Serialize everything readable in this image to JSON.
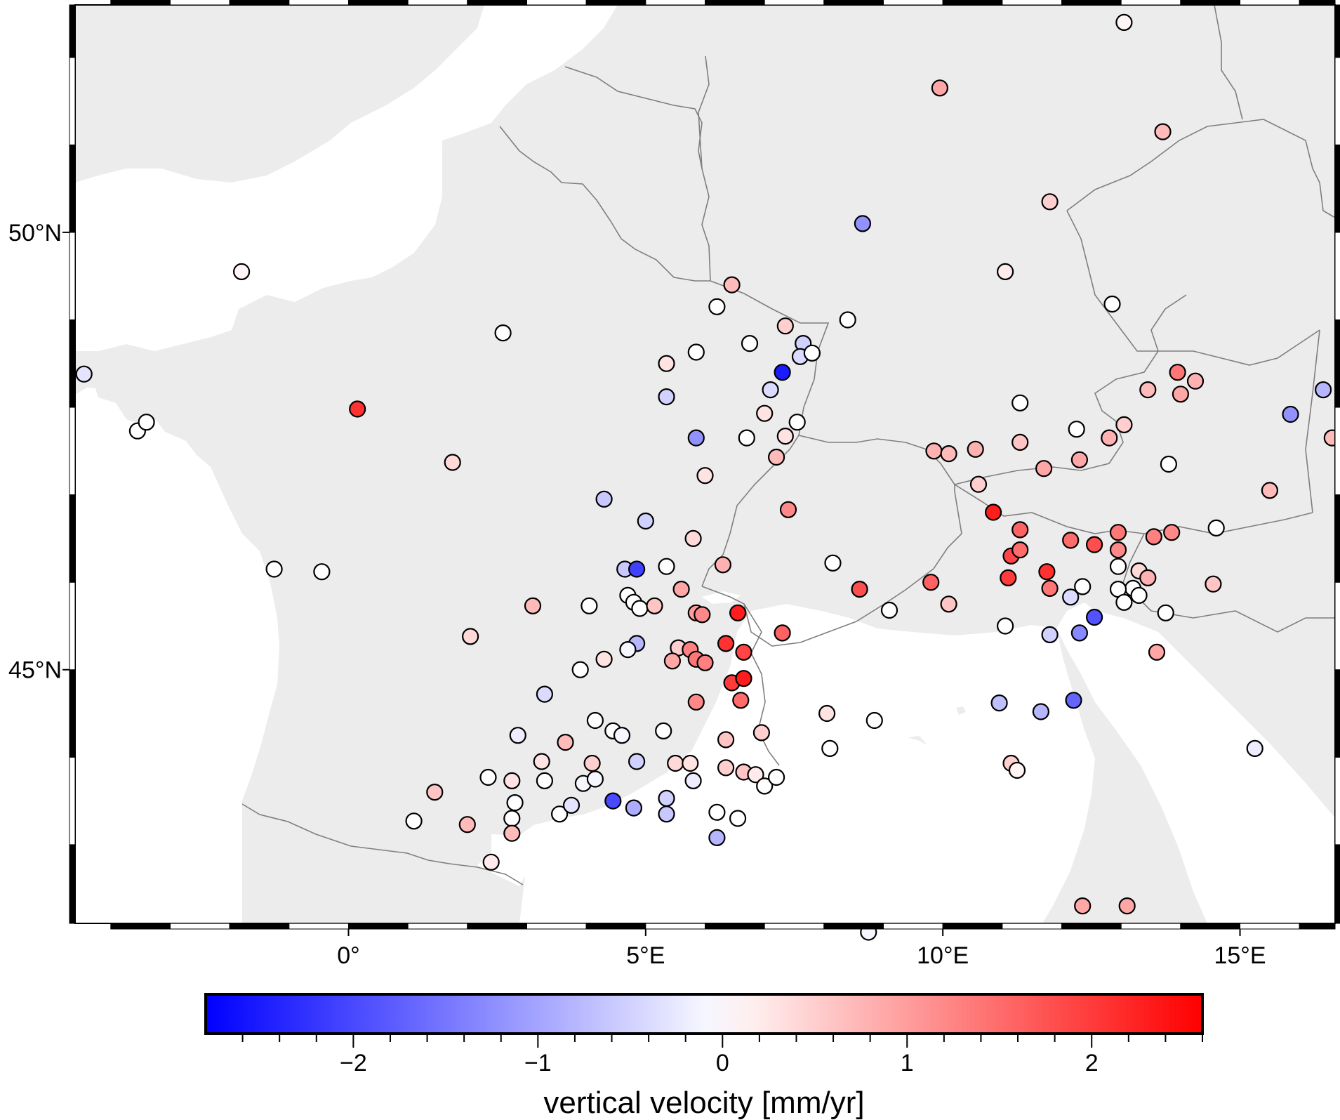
{
  "map": {
    "lon_range": [
      -4.6,
      16.6
    ],
    "lat_range": [
      42.1,
      52.6
    ],
    "land_color": "#ececec",
    "sea_color": "#ffffff",
    "border_color": "#7f7f7f",
    "lon_ticks": [
      {
        "value": 0,
        "label": "0°"
      },
      {
        "value": 5,
        "label": "5°E"
      },
      {
        "value": 10,
        "label": "10°E"
      },
      {
        "value": 15,
        "label": "15°E"
      }
    ],
    "lat_ticks": [
      {
        "value": 45,
        "label": "45°N"
      },
      {
        "value": 50,
        "label": "50°N"
      }
    ]
  },
  "colorbar": {
    "title": "vertical velocity [mm/yr]",
    "range": [
      -2.8,
      2.6
    ],
    "low_color": "#0000ff",
    "mid_color": "#ffffff",
    "high_color": "#ff0000",
    "ticks": [
      {
        "value": -2,
        "label": "−2"
      },
      {
        "value": -1,
        "label": "−1"
      },
      {
        "value": 0,
        "label": "0"
      },
      {
        "value": 1,
        "label": "1"
      },
      {
        "value": 2,
        "label": "2"
      }
    ]
  },
  "chart_data": {
    "type": "scatter",
    "xlabel": "",
    "ylabel": "",
    "color_variable": "vertical velocity [mm/yr]",
    "points": [
      {
        "lon": -4.45,
        "lat": 48.38,
        "v": -0.3
      },
      {
        "lon": -3.55,
        "lat": 47.73,
        "v": 0.0
      },
      {
        "lon": -3.4,
        "lat": 47.83,
        "v": 0.0
      },
      {
        "lon": -1.8,
        "lat": 49.55,
        "v": 0.1
      },
      {
        "lon": -1.25,
        "lat": 46.15,
        "v": 0.0
      },
      {
        "lon": -0.45,
        "lat": 46.12,
        "v": 0.0
      },
      {
        "lon": 0.15,
        "lat": 47.98,
        "v": 2.1
      },
      {
        "lon": 1.75,
        "lat": 47.37,
        "v": 0.4
      },
      {
        "lon": 2.6,
        "lat": 48.85,
        "v": 0.0
      },
      {
        "lon": 2.05,
        "lat": 45.38,
        "v": 0.4
      },
      {
        "lon": 3.1,
        "lat": 45.73,
        "v": 0.7
      },
      {
        "lon": 3.3,
        "lat": 44.72,
        "v": -0.4
      },
      {
        "lon": 2.85,
        "lat": 44.25,
        "v": -0.2
      },
      {
        "lon": 3.25,
        "lat": 43.95,
        "v": 0.3
      },
      {
        "lon": 3.65,
        "lat": 44.17,
        "v": 0.7
      },
      {
        "lon": 3.3,
        "lat": 43.73,
        "v": 0.0
      },
      {
        "lon": 2.35,
        "lat": 43.77,
        "v": 0.0
      },
      {
        "lon": 2.75,
        "lat": 43.73,
        "v": 0.3
      },
      {
        "lon": 2.8,
        "lat": 43.48,
        "v": 0.0
      },
      {
        "lon": 2.75,
        "lat": 43.3,
        "v": 0.0
      },
      {
        "lon": 2.75,
        "lat": 43.13,
        "v": 0.7
      },
      {
        "lon": 2.4,
        "lat": 42.8,
        "v": 0.2
      },
      {
        "lon": 2.0,
        "lat": 43.23,
        "v": 0.7
      },
      {
        "lon": 1.45,
        "lat": 43.6,
        "v": 0.6
      },
      {
        "lon": 1.1,
        "lat": 43.27,
        "v": 0.0
      },
      {
        "lon": 3.55,
        "lat": 43.35,
        "v": 0.0
      },
      {
        "lon": 3.75,
        "lat": 43.45,
        "v": -0.3
      },
      {
        "lon": 3.95,
        "lat": 43.7,
        "v": -0.1
      },
      {
        "lon": 4.15,
        "lat": 43.75,
        "v": -0.1
      },
      {
        "lon": 4.1,
        "lat": 43.93,
        "v": 0.5
      },
      {
        "lon": 4.45,
        "lat": 43.5,
        "v": -2.0
      },
      {
        "lon": 4.8,
        "lat": 43.42,
        "v": -0.9
      },
      {
        "lon": 4.85,
        "lat": 43.95,
        "v": -0.5
      },
      {
        "lon": 4.15,
        "lat": 44.42,
        "v": 0.0
      },
      {
        "lon": 4.45,
        "lat": 44.3,
        "v": 0.0
      },
      {
        "lon": 4.6,
        "lat": 44.25,
        "v": -0.1
      },
      {
        "lon": 3.9,
        "lat": 45.0,
        "v": 0.0
      },
      {
        "lon": 4.3,
        "lat": 45.12,
        "v": 0.3
      },
      {
        "lon": 4.05,
        "lat": 45.73,
        "v": 0.0
      },
      {
        "lon": 4.3,
        "lat": 46.95,
        "v": -0.6
      },
      {
        "lon": 4.65,
        "lat": 46.15,
        "v": -0.6
      },
      {
        "lon": 4.85,
        "lat": 46.15,
        "v": -2.1
      },
      {
        "lon": 4.7,
        "lat": 45.85,
        "v": 0.0
      },
      {
        "lon": 4.8,
        "lat": 45.77,
        "v": 0.0
      },
      {
        "lon": 4.9,
        "lat": 45.7,
        "v": 0.0
      },
      {
        "lon": 5.15,
        "lat": 45.73,
        "v": 0.6
      },
      {
        "lon": 4.85,
        "lat": 45.3,
        "v": -0.8
      },
      {
        "lon": 4.7,
        "lat": 45.23,
        "v": -0.1
      },
      {
        "lon": 5.0,
        "lat": 46.7,
        "v": -0.5
      },
      {
        "lon": 5.35,
        "lat": 46.18,
        "v": 0.0
      },
      {
        "lon": 5.35,
        "lat": 48.5,
        "v": 0.3
      },
      {
        "lon": 5.35,
        "lat": 48.12,
        "v": -0.5
      },
      {
        "lon": 5.85,
        "lat": 48.63,
        "v": 0.0
      },
      {
        "lon": 5.85,
        "lat": 47.65,
        "v": -1.2
      },
      {
        "lon": 6.0,
        "lat": 47.22,
        "v": 0.3
      },
      {
        "lon": 5.8,
        "lat": 46.5,
        "v": 0.4
      },
      {
        "lon": 5.6,
        "lat": 45.92,
        "v": 0.9
      },
      {
        "lon": 5.85,
        "lat": 45.65,
        "v": 1.0
      },
      {
        "lon": 5.95,
        "lat": 45.63,
        "v": 1.2
      },
      {
        "lon": 5.55,
        "lat": 45.25,
        "v": 0.5
      },
      {
        "lon": 5.45,
        "lat": 45.1,
        "v": 0.9
      },
      {
        "lon": 5.75,
        "lat": 45.23,
        "v": 1.3
      },
      {
        "lon": 5.85,
        "lat": 45.12,
        "v": 1.4
      },
      {
        "lon": 6.0,
        "lat": 45.08,
        "v": 1.3
      },
      {
        "lon": 6.35,
        "lat": 45.3,
        "v": 2.1
      },
      {
        "lon": 6.65,
        "lat": 45.2,
        "v": 1.9
      },
      {
        "lon": 6.55,
        "lat": 45.65,
        "v": 2.3
      },
      {
        "lon": 6.45,
        "lat": 44.85,
        "v": 2.0
      },
      {
        "lon": 6.65,
        "lat": 44.9,
        "v": 2.3
      },
      {
        "lon": 6.6,
        "lat": 44.65,
        "v": 1.5
      },
      {
        "lon": 5.85,
        "lat": 44.63,
        "v": 1.2
      },
      {
        "lon": 6.35,
        "lat": 44.2,
        "v": 0.6
      },
      {
        "lon": 6.3,
        "lat": 46.2,
        "v": 0.8
      },
      {
        "lon": 7.3,
        "lat": 45.42,
        "v": 1.6
      },
      {
        "lon": 6.95,
        "lat": 44.28,
        "v": 0.5
      },
      {
        "lon": 5.5,
        "lat": 43.93,
        "v": 0.4
      },
      {
        "lon": 5.75,
        "lat": 43.93,
        "v": 0.3
      },
      {
        "lon": 5.35,
        "lat": 43.53,
        "v": -0.5
      },
      {
        "lon": 5.35,
        "lat": 43.35,
        "v": -0.6
      },
      {
        "lon": 5.8,
        "lat": 43.73,
        "v": -0.2
      },
      {
        "lon": 6.35,
        "lat": 43.88,
        "v": 0.5
      },
      {
        "lon": 6.2,
        "lat": 43.37,
        "v": 0.0
      },
      {
        "lon": 6.2,
        "lat": 43.08,
        "v": -0.8
      },
      {
        "lon": 6.55,
        "lat": 43.3,
        "v": 0.0
      },
      {
        "lon": 6.65,
        "lat": 43.83,
        "v": 0.6
      },
      {
        "lon": 6.85,
        "lat": 43.8,
        "v": 0.2
      },
      {
        "lon": 7.0,
        "lat": 43.67,
        "v": 0.0
      },
      {
        "lon": 7.2,
        "lat": 43.77,
        "v": 0.0
      },
      {
        "lon": 5.3,
        "lat": 44.3,
        "v": 0.0
      },
      {
        "lon": 6.45,
        "lat": 49.4,
        "v": 0.7
      },
      {
        "lon": 6.2,
        "lat": 49.15,
        "v": 0.0
      },
      {
        "lon": 6.75,
        "lat": 48.73,
        "v": 0.0
      },
      {
        "lon": 7.35,
        "lat": 48.93,
        "v": 0.5
      },
      {
        "lon": 7.65,
        "lat": 48.73,
        "v": -0.5
      },
      {
        "lon": 7.6,
        "lat": 48.58,
        "v": -0.4
      },
      {
        "lon": 7.8,
        "lat": 48.62,
        "v": 0.0
      },
      {
        "lon": 7.3,
        "lat": 48.4,
        "v": -2.5
      },
      {
        "lon": 7.1,
        "lat": 48.2,
        "v": -0.4
      },
      {
        "lon": 7.0,
        "lat": 47.93,
        "v": 0.3
      },
      {
        "lon": 7.55,
        "lat": 47.83,
        "v": 0.0
      },
      {
        "lon": 6.7,
        "lat": 47.65,
        "v": 0.0
      },
      {
        "lon": 7.35,
        "lat": 47.67,
        "v": 0.3
      },
      {
        "lon": 7.2,
        "lat": 47.43,
        "v": 0.7
      },
      {
        "lon": 7.4,
        "lat": 46.83,
        "v": 1.2
      },
      {
        "lon": 8.4,
        "lat": 49.0,
        "v": 0.0
      },
      {
        "lon": 8.65,
        "lat": 50.1,
        "v": -1.2
      },
      {
        "lon": 8.15,
        "lat": 46.22,
        "v": 0.0
      },
      {
        "lon": 8.6,
        "lat": 45.92,
        "v": 1.8
      },
      {
        "lon": 9.1,
        "lat": 45.68,
        "v": 0.0
      },
      {
        "lon": 8.05,
        "lat": 44.5,
        "v": 0.3
      },
      {
        "lon": 8.1,
        "lat": 44.1,
        "v": 0.0
      },
      {
        "lon": 8.85,
        "lat": 44.42,
        "v": 0.0
      },
      {
        "lon": 8.75,
        "lat": 42.0,
        "v": -0.1
      },
      {
        "lon": 9.85,
        "lat": 47.5,
        "v": 0.8
      },
      {
        "lon": 10.1,
        "lat": 47.47,
        "v": 0.7
      },
      {
        "lon": 10.55,
        "lat": 47.52,
        "v": 0.8
      },
      {
        "lon": 10.6,
        "lat": 47.12,
        "v": 0.5
      },
      {
        "lon": 10.85,
        "lat": 46.8,
        "v": 2.3
      },
      {
        "lon": 9.8,
        "lat": 46.0,
        "v": 1.6
      },
      {
        "lon": 10.1,
        "lat": 45.75,
        "v": 0.6
      },
      {
        "lon": 11.15,
        "lat": 46.3,
        "v": 1.9
      },
      {
        "lon": 11.1,
        "lat": 46.05,
        "v": 2.0
      },
      {
        "lon": 11.3,
        "lat": 46.6,
        "v": 1.6
      },
      {
        "lon": 11.3,
        "lat": 46.37,
        "v": 1.5
      },
      {
        "lon": 11.75,
        "lat": 46.12,
        "v": 2.1
      },
      {
        "lon": 11.8,
        "lat": 45.93,
        "v": 1.4
      },
      {
        "lon": 11.05,
        "lat": 45.5,
        "v": 0.0
      },
      {
        "lon": 11.8,
        "lat": 45.4,
        "v": -0.5
      },
      {
        "lon": 12.15,
        "lat": 45.83,
        "v": -0.4
      },
      {
        "lon": 12.3,
        "lat": 45.42,
        "v": -1.3
      },
      {
        "lon": 12.55,
        "lat": 45.6,
        "v": -1.9
      },
      {
        "lon": 12.35,
        "lat": 45.95,
        "v": 0.0
      },
      {
        "lon": 12.15,
        "lat": 46.48,
        "v": 1.5
      },
      {
        "lon": 12.55,
        "lat": 46.43,
        "v": 1.8
      },
      {
        "lon": 12.95,
        "lat": 46.57,
        "v": 1.4
      },
      {
        "lon": 12.95,
        "lat": 46.37,
        "v": 1.2
      },
      {
        "lon": 12.95,
        "lat": 46.18,
        "v": 0.0
      },
      {
        "lon": 13.3,
        "lat": 46.13,
        "v": 0.4
      },
      {
        "lon": 13.2,
        "lat": 45.93,
        "v": 0.0
      },
      {
        "lon": 12.95,
        "lat": 45.92,
        "v": 0.0
      },
      {
        "lon": 13.05,
        "lat": 45.77,
        "v": 0.0
      },
      {
        "lon": 13.3,
        "lat": 45.85,
        "v": 0.0
      },
      {
        "lon": 13.45,
        "lat": 46.05,
        "v": 0.8
      },
      {
        "lon": 13.75,
        "lat": 45.65,
        "v": 0.0
      },
      {
        "lon": 13.6,
        "lat": 45.2,
        "v": 0.9
      },
      {
        "lon": 13.55,
        "lat": 46.52,
        "v": 1.3
      },
      {
        "lon": 13.85,
        "lat": 46.57,
        "v": 1.2
      },
      {
        "lon": 14.55,
        "lat": 45.98,
        "v": 0.6
      },
      {
        "lon": 14.6,
        "lat": 46.62,
        "v": 0.0
      },
      {
        "lon": 15.25,
        "lat": 44.1,
        "v": -0.2
      },
      {
        "lon": 15.5,
        "lat": 47.05,
        "v": 0.7
      },
      {
        "lon": 15.85,
        "lat": 47.92,
        "v": -1.2
      },
      {
        "lon": 16.4,
        "lat": 48.2,
        "v": -0.8
      },
      {
        "lon": 16.55,
        "lat": 47.65,
        "v": 0.7
      },
      {
        "lon": 13.8,
        "lat": 47.35,
        "v": 0.0
      },
      {
        "lon": 13.05,
        "lat": 47.8,
        "v": 0.5
      },
      {
        "lon": 12.8,
        "lat": 47.65,
        "v": 0.8
      },
      {
        "lon": 12.25,
        "lat": 47.75,
        "v": 0.0
      },
      {
        "lon": 12.3,
        "lat": 47.4,
        "v": 0.9
      },
      {
        "lon": 11.7,
        "lat": 47.3,
        "v": 0.9
      },
      {
        "lon": 11.3,
        "lat": 47.6,
        "v": 0.6
      },
      {
        "lon": 11.3,
        "lat": 48.05,
        "v": 0.0
      },
      {
        "lon": 13.45,
        "lat": 48.2,
        "v": 0.7
      },
      {
        "lon": 13.95,
        "lat": 48.4,
        "v": 1.4
      },
      {
        "lon": 14.0,
        "lat": 48.15,
        "v": 0.9
      },
      {
        "lon": 14.25,
        "lat": 48.3,
        "v": 0.8
      },
      {
        "lon": 12.85,
        "lat": 49.18,
        "v": 0.0
      },
      {
        "lon": 11.05,
        "lat": 49.55,
        "v": 0.2
      },
      {
        "lon": 11.8,
        "lat": 50.35,
        "v": 0.5
      },
      {
        "lon": 13.7,
        "lat": 51.15,
        "v": 0.7
      },
      {
        "lon": 9.95,
        "lat": 51.65,
        "v": 0.9
      },
      {
        "lon": 13.05,
        "lat": 52.4,
        "v": 0.1
      },
      {
        "lon": 10.95,
        "lat": 44.62,
        "v": -0.7
      },
      {
        "lon": 11.65,
        "lat": 44.52,
        "v": -0.8
      },
      {
        "lon": 12.2,
        "lat": 44.65,
        "v": -1.7
      },
      {
        "lon": 11.15,
        "lat": 43.93,
        "v": 0.5
      },
      {
        "lon": 11.25,
        "lat": 43.85,
        "v": 0.1
      },
      {
        "lon": 12.35,
        "lat": 42.3,
        "v": 0.9
      },
      {
        "lon": 13.1,
        "lat": 42.3,
        "v": 0.9
      }
    ]
  }
}
